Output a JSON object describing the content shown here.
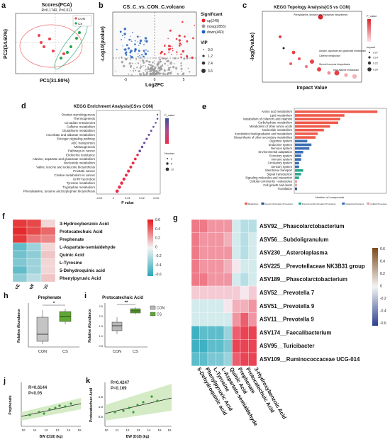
{
  "figure": {
    "panels": {
      "a": {
        "letter": "a",
        "title": "Scores(PCA)",
        "stat": "R=0.1740, P=0.011",
        "xlabel": "PC1(31.80%)",
        "ylabel": "PC2(14.60%)",
        "legend": [
          "CON",
          "CS"
        ],
        "colors": {
          "CON": "#e8464e",
          "CS": "#22a34a"
        }
      },
      "b": {
        "letter": "b",
        "title": "CS_C_vs_CON_C.volcano",
        "xlabel": "Log2FC",
        "ylabel": "-Log10(pvalue)",
        "sig_title": "Significant",
        "sig_items": [
          {
            "label": "up(249)",
            "color": "#e8202a"
          },
          {
            "label": "nosig(2855)",
            "color": "#9a9a9a"
          },
          {
            "label": "down(460)",
            "color": "#1f5fbf"
          }
        ],
        "vip_title": "VIP",
        "vip_items": [
          "0.0",
          "1.2",
          "2.4",
          "3.6"
        ],
        "xticks": [
          "-5",
          "0",
          "5"
        ]
      },
      "c": {
        "letter": "c",
        "title": "KEGG Topology Analysis(CS vs CON)",
        "xlabel": "Impact Value",
        "ylabel": "-log(Pvalue)",
        "annotations": [
          "Phenylalanine, tyrosine and tryptophan biosynthesis",
          "Alanine, aspartate and glutamate metabolism",
          "Caffeine metabolism",
          "Steroid hormone biosynthesis",
          "beta-Alanine metabolism"
        ],
        "legend_p": "P_value",
        "legend_impact": "Impact",
        "impact_items": [
          "0.07",
          "0.14",
          "0.22",
          "0.29"
        ]
      },
      "d": {
        "letter": "d",
        "title": "KEGG Enrichment Analysis(CSvs CON)",
        "xlabel": "P value",
        "legend_p": "P_value",
        "legend_n": "Number",
        "n_items": [
          "2",
          "5",
          "10"
        ],
        "pathways": [
          "Ovarian steroidogenesis",
          "Thermogenesis",
          "Circadian entrainment",
          "Caffeine metabolism",
          "Glutathione metabolism",
          "Ascorbate and aldarate metabolism",
          "Estrogen signaling pathway",
          "ABC transporters",
          "Melanogenesis",
          "Pathways in cancer",
          "Endocrine resistance",
          "Alanine, aspartate and glutamate metabolism",
          "Nucleotide metabolism",
          "Valine, leucine and isoleucine biosynthesis",
          "Prostate cancer",
          "Choline metabolism in cancer",
          "GnRH secretion",
          "Tyrosine metabolism",
          "Tryptophan metabolism",
          "Phenylalanine, tyrosine and tryptophan biosynthesis"
        ],
        "values": [
          0.055,
          0.05,
          0.048,
          0.046,
          0.045,
          0.042,
          0.04,
          0.038,
          0.036,
          0.032,
          0.03,
          0.028,
          0.026,
          0.022,
          0.02,
          0.018,
          0.016,
          0.012,
          0.01,
          0.008
        ],
        "xticks": [
          "-0.01",
          "0",
          "0.01",
          "0.02",
          "0.03"
        ]
      },
      "e": {
        "letter": "e",
        "xlabel": "Number of compounds",
        "categories": [
          "Amino acid metabolism",
          "Lipid metabolism",
          "Metabolism of cofactors and vitamins",
          "Carbohydrate metabolism",
          "Metabolism of other amino acids",
          "Nucleotide metabolism",
          "Xenobiotics biodegradation and metabolism",
          "Biosynthesis of other secondary metabolites",
          "Digestive system",
          "Endocrine system",
          "Nervous system",
          "Environmental adaptation",
          "Excretory system",
          "Immune system",
          "Circulatory system",
          "Sensory system",
          "Membrane transport",
          "Signal transduction",
          "Signaling molecules and interaction",
          "Cellular community - eukaryotes",
          "Cell growth and death",
          "Translation"
        ],
        "values": [
          40,
          24,
          22,
          21,
          17,
          14,
          11,
          10,
          6,
          8,
          7,
          4,
          3,
          3,
          2,
          2,
          4,
          3,
          2,
          1,
          1,
          1
        ],
        "groups": [
          0,
          0,
          0,
          0,
          0,
          0,
          0,
          0,
          3,
          3,
          3,
          3,
          3,
          3,
          3,
          3,
          2,
          2,
          2,
          4,
          4,
          1
        ],
        "group_colors": [
          "#ef5a4b",
          "#2b4c8c",
          "#29a88e",
          "#3b6fb5",
          "#e9a0a6"
        ],
        "legend": [
          "Metabolism",
          "Genetic Information Processing",
          "Environmental Information Processing",
          "Organismal Systems",
          "Cellular Processes"
        ]
      },
      "f": {
        "letter": "f",
        "rows": [
          "3-Hydroxybenzoic Acid",
          "Protocatechuic Acid",
          "Prephenate",
          "L-Aspartate-semialdehyde",
          "Quinic Acid",
          "L-Tyrosine",
          "5-Dehydroquinic acid",
          "Phenylpyruvic Acid"
        ],
        "cols": [
          "FE",
          "BW",
          "ADG"
        ],
        "matrix": [
          [
            0.6,
            0.55,
            0.1
          ],
          [
            0.65,
            0.55,
            0.45
          ],
          [
            0.6,
            0.4,
            0.35
          ],
          [
            -0.5,
            -0.3,
            0.1
          ],
          [
            -0.45,
            -0.35,
            0.15
          ],
          [
            -0.4,
            -0.3,
            0.1
          ],
          [
            -0.5,
            -0.3,
            0.1
          ],
          [
            -0.35,
            -0.2,
            0.15
          ]
        ],
        "scale_ticks": [
          "0.6",
          "0.4",
          "0.2",
          "0",
          "-0.2",
          "-0.4",
          "-0.6"
        ]
      },
      "g": {
        "letter": "g",
        "rows": [
          "ASV92__Phascolarctobacterium",
          "ASV56__Subdoligranulum",
          "ASV230__Asteroleplasma",
          "ASV225__Prevotellaceae NK3B31 group",
          "ASV189__Phascolarctobacterium",
          "ASV52__Prevotella 7",
          "ASV51__Prevotella 9",
          "ASV11__Prevotella 9",
          "ASV174__Faecalibacterium",
          "ASV95__Turicibacter",
          "ASV109__Ruminococcaceae UCG-014"
        ],
        "cols": [
          "5-Dehydroquinic acid",
          "Phenylpyruvic Acid",
          "L-Tyrosine",
          "L-Aspartate-semialdehyde",
          "Quinic Acid",
          "Prephenate",
          "Protocatechuic Acid",
          "3-Hydroxybenzoic Acid"
        ],
        "matrix": [
          [
            0.4,
            0.4,
            0.3,
            0.3,
            0.3,
            -0.1,
            -0.2,
            -0.2
          ],
          [
            0.4,
            0.3,
            0.3,
            0.3,
            0.2,
            -0.1,
            -0.2,
            -0.1
          ],
          [
            0.4,
            0.3,
            0.3,
            0.3,
            0.3,
            -0.1,
            -0.2,
            -0.1
          ],
          [
            0.4,
            0.3,
            0.3,
            0.3,
            0.2,
            0.0,
            -0.1,
            -0.1
          ],
          [
            0.4,
            0.4,
            0.3,
            0.3,
            0.3,
            -0.1,
            -0.2,
            -0.1
          ],
          [
            0.1,
            0.1,
            0.1,
            0.1,
            0.1,
            0.1,
            0.0,
            0.1
          ],
          [
            -0.1,
            -0.1,
            -0.1,
            -0.1,
            0.0,
            0.2,
            0.2,
            0.3
          ],
          [
            -0.1,
            -0.1,
            -0.1,
            -0.1,
            -0.1,
            0.3,
            0.5,
            0.3
          ],
          [
            -0.6,
            -0.5,
            -0.5,
            -0.5,
            -0.3,
            0.5,
            0.6,
            0.6
          ],
          [
            -0.6,
            -0.6,
            -0.5,
            -0.5,
            -0.4,
            0.6,
            0.6,
            0.6
          ],
          [
            -0.5,
            -0.5,
            -0.4,
            -0.4,
            -0.3,
            0.5,
            0.6,
            0.6
          ]
        ],
        "scale_ticks": [
          "0.6",
          "0.4",
          "0.2",
          "0",
          "-0.2",
          "-0.4",
          "-0.6"
        ]
      },
      "h": {
        "letter": "h",
        "title": "Prephenate",
        "ylabel": "Relative Abundance",
        "groups": [
          "CON",
          "CS"
        ],
        "sig": "*"
      },
      "i": {
        "letter": "i",
        "title": "Protocatechuic Acid",
        "ylabel": "Relative Abundance",
        "groups": [
          "CON",
          "CS"
        ],
        "sig": "**",
        "yticks": [
          "2.5",
          "2.0",
          "1.5",
          "1.0",
          "0.5"
        ],
        "legend": [
          "CON",
          "CS"
        ],
        "colors": {
          "CON": "#b8b8b8",
          "CS": "#5fa832"
        }
      },
      "j": {
        "letter": "j",
        "stat_r": "R=0.6144",
        "stat_p": "P<0.05",
        "xlabel": "BW (D18) (kg)",
        "ylabel": "Prephenate",
        "xticks": [
          "10",
          "11",
          "12",
          "13",
          "14",
          "15"
        ]
      },
      "k": {
        "letter": "k",
        "stat_r": "R=0.4247",
        "stat_p": "P=0.169",
        "xlabel": "BW (D18) (kg)",
        "ylabel": "Protocatechuic Acid",
        "xticks": [
          "10",
          "11",
          "12",
          "13",
          "14",
          "15",
          "16"
        ],
        "yticks": [
          "1.5",
          "1.0",
          "0.5"
        ]
      }
    }
  }
}
